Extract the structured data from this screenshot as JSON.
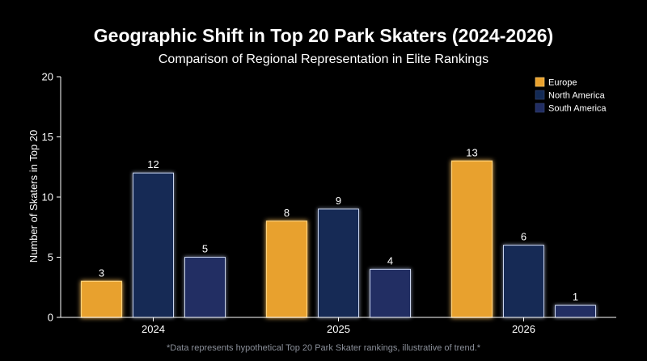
{
  "chart_data": {
    "type": "bar",
    "title": "Geographic Shift in Top 20 Park Skaters (2024-2026)",
    "subtitle": "Comparison of Regional Representation in Elite Rankings",
    "xlabel": "",
    "ylabel": "Number of Skaters in Top 20",
    "ylim": [
      0,
      20
    ],
    "yticks": [
      "0",
      "5",
      "10",
      "15",
      "20"
    ],
    "categories": [
      "2024",
      "2025",
      "2026"
    ],
    "series": [
      {
        "name": "Europe",
        "color": "#e8a12e",
        "values": [
          3,
          8,
          13
        ]
      },
      {
        "name": "North America",
        "color": "#132a55",
        "values": [
          12,
          9,
          6
        ]
      },
      {
        "name": "South America",
        "color": "#212d63",
        "values": [
          5,
          4,
          1
        ]
      }
    ],
    "legend_position": "top-right",
    "grid": false,
    "footnote": "*Data represents hypothetical Top 20 Park Skater rankings, illustrative of trend.*"
  }
}
